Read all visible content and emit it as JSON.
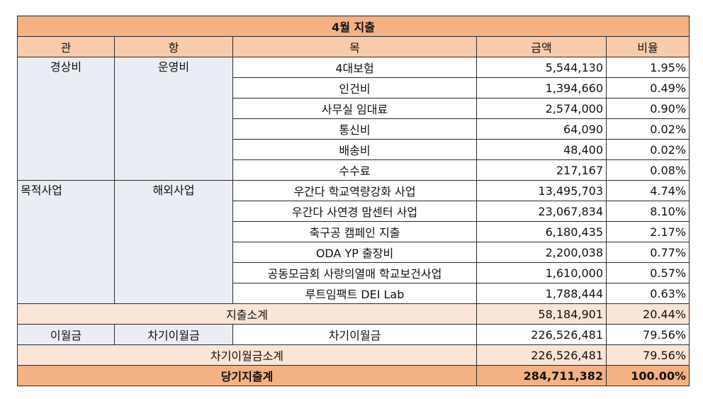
{
  "title": "4월 지출",
  "headers": {
    "gwan": "관",
    "hang": "항",
    "mok": "목",
    "amount": "금액",
    "ratio": "비율"
  },
  "groups": [
    {
      "gwan": "경상비",
      "hang": "운영비",
      "rows": [
        {
          "mok": "4대보험",
          "amount": "5,544,130",
          "ratio": "1.95%"
        },
        {
          "mok": "인건비",
          "amount": "1,394,660",
          "ratio": "0.49%"
        },
        {
          "mok": "사무실 임대료",
          "amount": "2,574,000",
          "ratio": "0.90%"
        },
        {
          "mok": "통신비",
          "amount": "64,090",
          "ratio": "0.02%"
        },
        {
          "mok": "배송비",
          "amount": "48,400",
          "ratio": "0.02%"
        },
        {
          "mok": "수수료",
          "amount": "217,167",
          "ratio": "0.08%"
        }
      ]
    },
    {
      "gwan": "목적사업",
      "hang": "해외사업",
      "rows": [
        {
          "mok": "우간다 학교역량강화 사업",
          "amount": "13,495,703",
          "ratio": "4.74%"
        },
        {
          "mok": "우간다 사연경 맘센터 사업",
          "amount": "23,067,834",
          "ratio": "8.10%"
        },
        {
          "mok": "축구공 캠페인 지출",
          "amount": "6,180,435",
          "ratio": "2.17%"
        },
        {
          "mok": "ODA YP 출장비",
          "amount": "2,200,038",
          "ratio": "0.77%"
        },
        {
          "mok": "공동모금회 사랑의열매 학교보건사업",
          "amount": "1,610,000",
          "ratio": "0.57%"
        },
        {
          "mok": "루트임팩트 DEI Lab",
          "amount": "1,788,444",
          "ratio": "0.63%"
        }
      ]
    }
  ],
  "expense_subtotal": {
    "label": "지출소계",
    "amount": "58,184,901",
    "ratio": "20.44%"
  },
  "carryover": {
    "gwan": "이월금",
    "hang": "차기이월금",
    "mok": "차기이월금",
    "amount": "226,526,481",
    "ratio": "79.56%"
  },
  "carryover_subtotal": {
    "label": "차기이월금소계",
    "amount": "226,526,481",
    "ratio": "79.56%"
  },
  "grand_total": {
    "label": "당기지출계",
    "amount": "284,711,382",
    "ratio": "100.00%"
  }
}
